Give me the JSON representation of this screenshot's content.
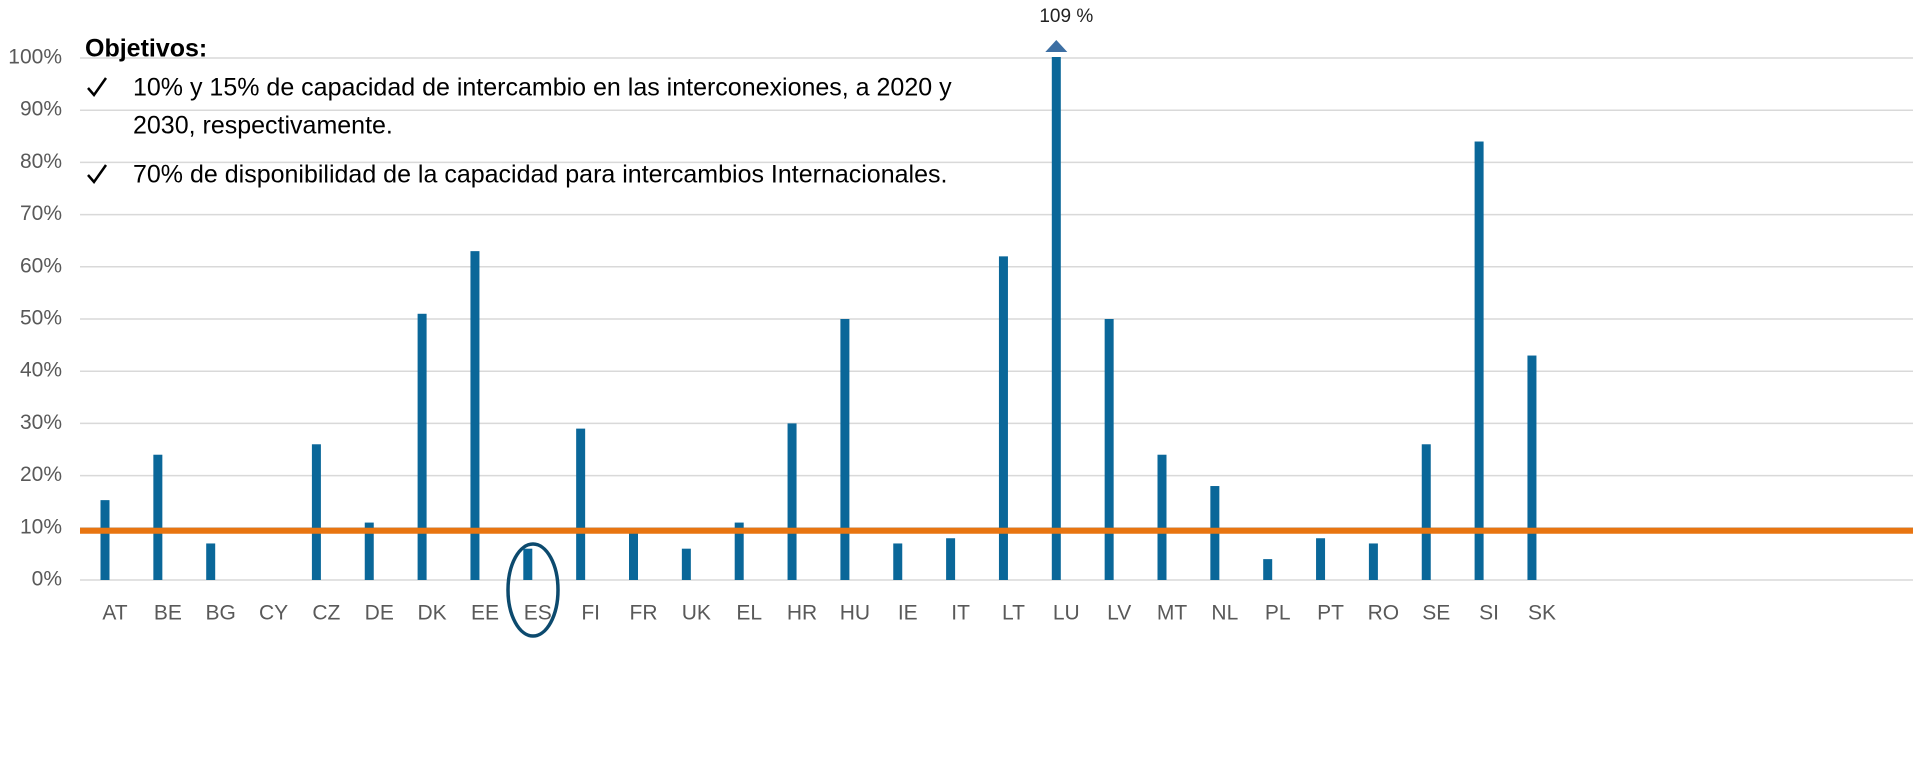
{
  "chart_data": {
    "type": "bar",
    "categories": [
      "AT",
      "BE",
      "BG",
      "CY",
      "CZ",
      "DE",
      "DK",
      "EE",
      "ES",
      "FI",
      "FR",
      "UK",
      "EL",
      "HR",
      "HU",
      "IE",
      "IT",
      "LT",
      "LU",
      "LV",
      "MT",
      "NL",
      "PL",
      "PT",
      "RO",
      "SE",
      "SI",
      "SK"
    ],
    "values": [
      15.3,
      24,
      7,
      0,
      26,
      11,
      51,
      63,
      6,
      29,
      9,
      6,
      11,
      30,
      50,
      7,
      8,
      62,
      109,
      50,
      24,
      18,
      4,
      8,
      7,
      26,
      84,
      43
    ],
    "value_labels": [
      null,
      null,
      null,
      null,
      null,
      null,
      null,
      null,
      null,
      null,
      null,
      null,
      null,
      null,
      null,
      null,
      null,
      null,
      "109 %",
      null,
      null,
      null,
      null,
      null,
      null,
      null,
      null,
      null
    ],
    "color": "#0a6799",
    "reference_line": {
      "value": 10,
      "color": "#e87511"
    },
    "ylim": [
      0,
      100
    ],
    "yticks": [
      {
        "value": 0,
        "label": "0%"
      },
      {
        "value": 10,
        "label": "10%"
      },
      {
        "value": 20,
        "label": "20%"
      },
      {
        "value": 30,
        "label": "30%"
      },
      {
        "value": 40,
        "label": "40%"
      },
      {
        "value": 50,
        "label": "50%"
      },
      {
        "value": 60,
        "label": "60%"
      },
      {
        "value": 70,
        "label": "70%"
      },
      {
        "value": 80,
        "label": "80%"
      },
      {
        "value": 90,
        "label": "90%"
      },
      {
        "value": 100,
        "label": "100%"
      }
    ],
    "grid": true,
    "annotation": {
      "title": "Objetivos:",
      "bullets": [
        [
          "10% y 15% de capacidad de intercambio en las interconexiones, a 2020 y",
          "2030, respectivamente."
        ],
        [
          "70% de disponibilidad de la capacidad para intercambios Internacionales."
        ]
      ]
    }
  }
}
